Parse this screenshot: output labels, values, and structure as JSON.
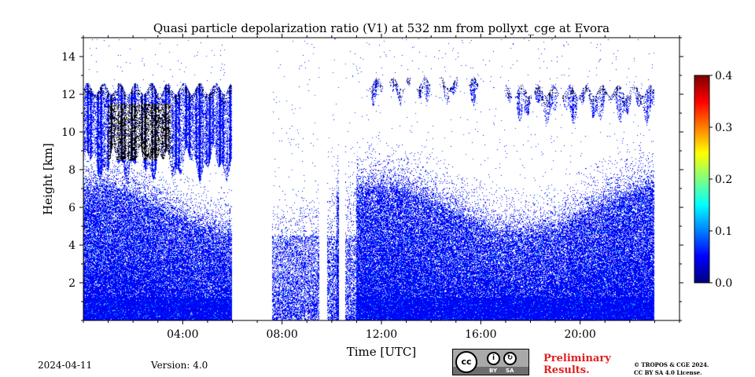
{
  "chart_data": {
    "type": "heatmap",
    "title": "Quasi particle depolarization ratio (V1) at 532 nm from pollyxt_cge at Evora",
    "xlabel": "Time [UTC]",
    "ylabel": "Height [km]",
    "x_range_hours": [
      0,
      24
    ],
    "ylim": [
      0,
      15
    ],
    "x_tick_labels": [
      "04:00",
      "08:00",
      "12:00",
      "16:00",
      "20:00"
    ],
    "x_tick_hours": [
      4,
      8,
      12,
      16,
      20
    ],
    "y_tick_labels": [
      "2",
      "4",
      "6",
      "8",
      "10",
      "12",
      "14"
    ],
    "y_tick_values": [
      2,
      4,
      6,
      8,
      10,
      12,
      14
    ],
    "colorbar": {
      "min": 0.0,
      "max": 0.4,
      "tick_labels": [
        "0.0",
        "0.1",
        "0.2",
        "0.3",
        "0.4"
      ],
      "tick_values": [
        0.0,
        0.1,
        0.2,
        0.3,
        0.4
      ],
      "colormap": "jet"
    },
    "no_data_intervals_hours": [
      [
        6.0,
        7.6
      ],
      [
        9.5,
        9.8
      ],
      [
        10.3,
        10.55
      ],
      [
        23.0,
        24.0
      ]
    ],
    "low_signal_intervals_hours": [
      [
        7.6,
        10.2
      ],
      [
        10.55,
        11.0
      ]
    ],
    "aerosol_layer": {
      "top_km_min": 4.5,
      "top_km_max": 7.0,
      "typical_value": 0.05
    },
    "cloud_layers": [
      {
        "t_start": 0.0,
        "t_end": 6.0,
        "base_km": 7.5,
        "top_km": 12.7,
        "dense_core_km": [
          8.5,
          11.5
        ],
        "dense_core_hours": [
          1.0,
          3.5
        ]
      },
      {
        "t_start": 11.5,
        "t_end": 16.0,
        "base_km": 11.5,
        "top_km": 13.0
      },
      {
        "t_start": 17.0,
        "t_end": 23.0,
        "base_km": 10.5,
        "top_km": 12.6
      }
    ]
  },
  "footer": {
    "date": "2024-04-11",
    "version": "Version: 4.0",
    "license_badge": {
      "cc": "cc",
      "by": "BY",
      "sa": "SA"
    },
    "preliminary_line1": "Preliminary",
    "preliminary_line2": "Results.",
    "copyright_line1": "© TROPOS & CGE 2024.",
    "copyright_line2": "CC BY SA 4.0 License."
  },
  "colors": {
    "accent_red": "#e02020",
    "saturated_cloud": "#000000"
  }
}
